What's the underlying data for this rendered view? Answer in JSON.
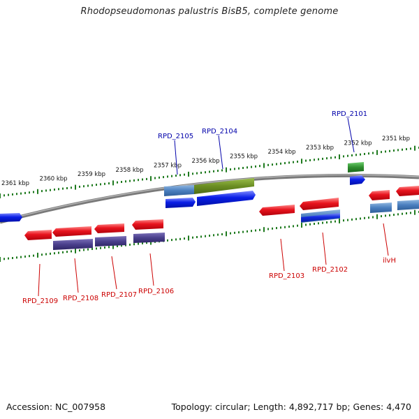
{
  "title": "Rhodopseudomonas palustris BisB5, complete genome",
  "footer": {
    "accession": "Accession: NC_007958",
    "summary": "Topology: circular; Length: 4,892,717 bp; Genes: 4,470"
  },
  "colors": {
    "backbone": "#7a7a7a",
    "tick": "#1f7a1f",
    "label_top": "#0000aa",
    "label_bottom": "#cc0000",
    "gene_red": "#e8141e",
    "gene_blue": "#0a1ee6",
    "gene_purple": "#4a3f8c",
    "gene_steel": "#4a7fbf",
    "gene_olive": "#6b8e23",
    "gene_green": "#2f8f2f"
  },
  "scale_labels": [
    "2361 kbp",
    "2360 kbp",
    "2359 kbp",
    "2358 kbp",
    "2357 kbp",
    "2356 kbp",
    "2355 kbp",
    "2354 kbp",
    "2353 kbp",
    "2352 kbp",
    "2351 kbp"
  ],
  "gene_labels": {
    "top": [
      "RPD_2105",
      "RPD_2104",
      "RPD_2101"
    ],
    "bottom": [
      "RPD_2109",
      "RPD_2108",
      "RPD_2107",
      "RPD_2106",
      "RPD_2103",
      "RPD_2102",
      "ilvH"
    ]
  }
}
